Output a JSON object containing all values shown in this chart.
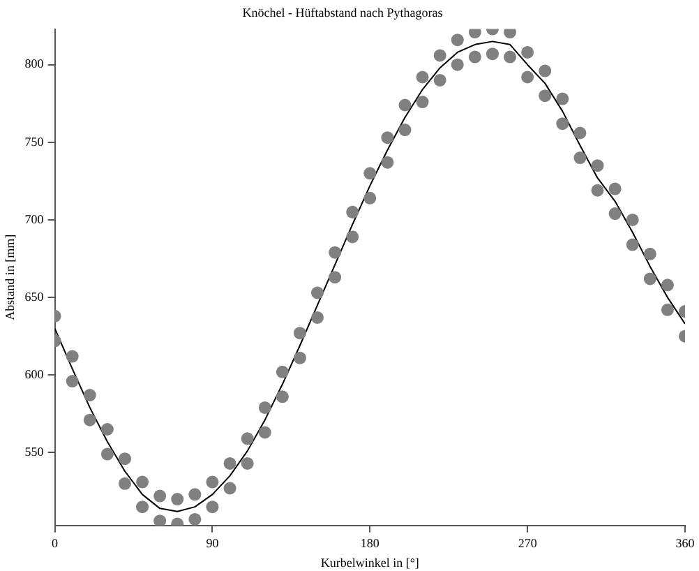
{
  "chart_data": {
    "type": "scatter",
    "title": "Knöchel - Hüftabstand nach Pythagoras",
    "xlabel": "Kurbelwinkel in [°]",
    "ylabel": "Abstand in [mm]",
    "xlim": [
      0,
      360
    ],
    "xticks": [
      0,
      90,
      180,
      270,
      360
    ],
    "ylim": [
      503,
      823
    ],
    "yticks": [
      550,
      600,
      650,
      700,
      750,
      800
    ],
    "grid": false,
    "legend": false,
    "marker": "circle",
    "series": [
      {
        "color": "#808080",
        "x": [
          0,
          0,
          10,
          10,
          20,
          20,
          30,
          30,
          40,
          40,
          50,
          50,
          60,
          60,
          70,
          70,
          80,
          80,
          90,
          90,
          100,
          100,
          110,
          110,
          120,
          120,
          130,
          130,
          140,
          140,
          150,
          150,
          160,
          160,
          170,
          170,
          180,
          180,
          190,
          190,
          200,
          200,
          210,
          210,
          220,
          220,
          230,
          230,
          240,
          240,
          250,
          250,
          260,
          260,
          270,
          270,
          280,
          280,
          290,
          290,
          300,
          300,
          310,
          310,
          320,
          320,
          330,
          330,
          340,
          340,
          350,
          350,
          360,
          360
        ],
        "values": [
          638,
          622,
          612,
          596,
          587,
          571,
          565,
          549,
          546,
          530,
          531,
          515,
          522,
          506,
          520,
          504,
          523,
          507,
          531,
          515,
          543,
          527,
          559,
          543,
          579,
          563,
          602,
          586,
          627,
          611,
          653,
          637,
          679,
          663,
          705,
          689,
          730,
          714,
          753,
          737,
          774,
          758,
          792,
          776,
          806,
          790,
          816,
          800,
          821,
          805,
          823,
          807,
          821,
          805,
          808,
          792,
          796,
          780,
          778,
          762,
          756,
          740,
          735,
          719,
          720,
          704,
          700,
          684,
          678,
          662,
          658,
          642,
          641,
          625
        ]
      },
      {
        "type": "line",
        "color": "#000000",
        "marker": "none",
        "x": [
          0,
          10,
          20,
          30,
          40,
          50,
          60,
          70,
          80,
          90,
          100,
          110,
          120,
          130,
          140,
          150,
          160,
          170,
          180,
          190,
          200,
          210,
          220,
          230,
          240,
          250,
          260,
          270,
          280,
          290,
          300,
          310,
          320,
          330,
          340,
          350,
          360
        ],
        "values": [
          630,
          604,
          579,
          557,
          538,
          523,
          514,
          512,
          515,
          523,
          535,
          551,
          571,
          594,
          619,
          645,
          671,
          697,
          722,
          745,
          766,
          784,
          798,
          808,
          813,
          815,
          813,
          800,
          788,
          770,
          748,
          727,
          712,
          692,
          670,
          650,
          633
        ]
      }
    ]
  }
}
